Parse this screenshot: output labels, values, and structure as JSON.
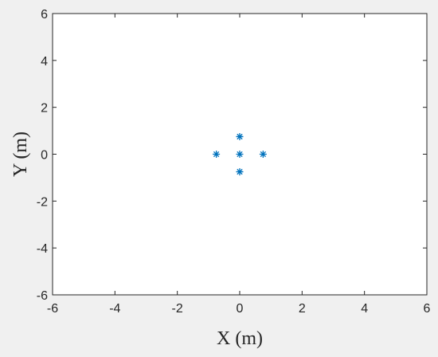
{
  "chart_data": {
    "type": "scatter",
    "title": "",
    "xlabel": "X (m)",
    "ylabel": "Y (m)",
    "xlim": [
      -6,
      6
    ],
    "ylim": [
      -6,
      6
    ],
    "xticks": [
      -6,
      -4,
      -2,
      0,
      2,
      4,
      6
    ],
    "yticks": [
      -6,
      -4,
      -2,
      0,
      2,
      4,
      6
    ],
    "xtick_labels": [
      "-6",
      "-4",
      "-2",
      "0",
      "2",
      "4",
      "6"
    ],
    "ytick_labels": [
      "-6",
      "-4",
      "-2",
      "0",
      "2",
      "4",
      "6"
    ],
    "grid": false,
    "marker": "asterisk",
    "marker_color": "#0072bd",
    "series": [
      {
        "x": [
          0,
          0.75,
          0,
          -0.75,
          0
        ],
        "y": [
          0,
          0,
          0.75,
          0,
          -0.75
        ]
      }
    ]
  }
}
